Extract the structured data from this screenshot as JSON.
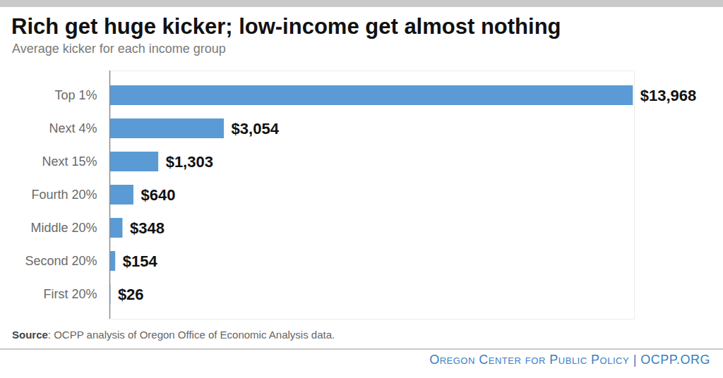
{
  "chart_data": {
    "type": "bar",
    "orientation": "horizontal",
    "title": "Rich get huge kicker; low-income get almost nothing",
    "subtitle": "Average kicker for each income group",
    "categories": [
      "Top 1%",
      "Next 4%",
      "Next 15%",
      "Fourth 20%",
      "Middle 20%",
      "Second 20%",
      "First 20%"
    ],
    "values": [
      13968,
      3054,
      1303,
      640,
      348,
      154,
      26
    ],
    "value_labels": [
      "$13,968",
      "$3,054",
      "$1,303",
      "$640",
      "$348",
      "$154",
      "$26"
    ],
    "color": "#5b9bd5",
    "xlim": [
      0,
      14000
    ],
    "xticks": [],
    "grid": false,
    "data_labels": true,
    "tick_labels": "y",
    "source": "Source: OCPP analysis of Oregon Office of Economic Analysis data.",
    "credit": "Oregon Center for Public Policy | OCPP.ORG"
  }
}
